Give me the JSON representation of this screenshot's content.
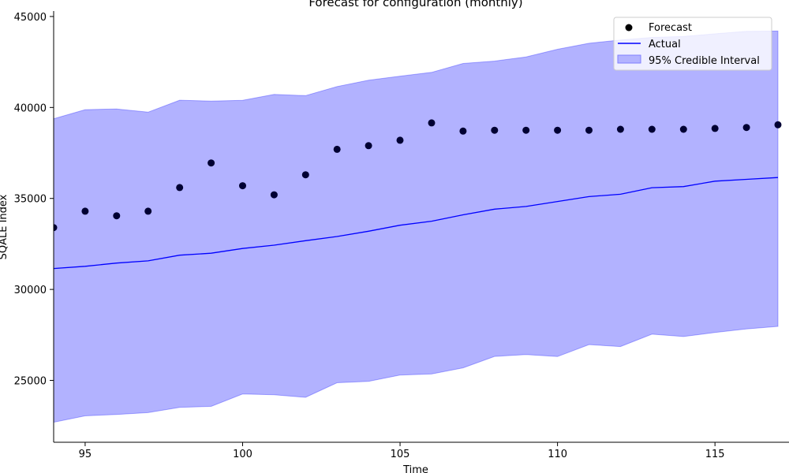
{
  "chart_data": {
    "type": "line",
    "title": "Forecast for configuration (monthly)",
    "xlabel": "Time",
    "ylabel": "SQALE Index",
    "xlim": [
      94,
      117
    ],
    "ylim": [
      21600,
      45300
    ],
    "x_ticks": [
      95,
      100,
      105,
      110,
      115
    ],
    "y_ticks": [
      25000,
      30000,
      35000,
      40000,
      45000
    ],
    "x": [
      94,
      95,
      96,
      97,
      98,
      99,
      100,
      101,
      102,
      103,
      104,
      105,
      106,
      107,
      108,
      109,
      110,
      111,
      112,
      113,
      114,
      115,
      116,
      117
    ],
    "series": [
      {
        "name": "Forecast",
        "kind": "scatter",
        "color": "#000033",
        "values": [
          33400,
          34300,
          34050,
          34300,
          35600,
          36950,
          35700,
          35200,
          36300,
          37700,
          37900,
          38200,
          39150,
          38700,
          38750,
          38750,
          38750,
          38750,
          38800,
          38800,
          38800,
          38850,
          38900,
          39050
        ]
      },
      {
        "name": "Actual",
        "kind": "line",
        "color": "#0000ff",
        "values": [
          31150,
          31270,
          31450,
          31570,
          31880,
          31990,
          32250,
          32430,
          32680,
          32910,
          33200,
          33530,
          33750,
          34100,
          34410,
          34560,
          34830,
          35100,
          35230,
          35590,
          35650,
          35950,
          36050,
          36150
        ]
      }
    ],
    "interval": {
      "name": "95% Credible Interval",
      "color": "#0000ff",
      "lower": [
        22700,
        23050,
        23130,
        23230,
        23520,
        23570,
        24250,
        24210,
        24070,
        24870,
        24950,
        25290,
        25350,
        25690,
        26320,
        26420,
        26310,
        26970,
        26860,
        27540,
        27410,
        27630,
        27830,
        27970
      ],
      "upper": [
        39380,
        39880,
        39920,
        39740,
        40400,
        40350,
        40390,
        40720,
        40650,
        41150,
        41500,
        41720,
        41930,
        42420,
        42550,
        42780,
        43200,
        43530,
        43710,
        43850,
        43900,
        44050,
        44180,
        44200
      ]
    },
    "legend": {
      "position": "top-right",
      "entries": [
        "Forecast",
        "Actual",
        "95% Credible Interval"
      ]
    },
    "grid": false
  }
}
